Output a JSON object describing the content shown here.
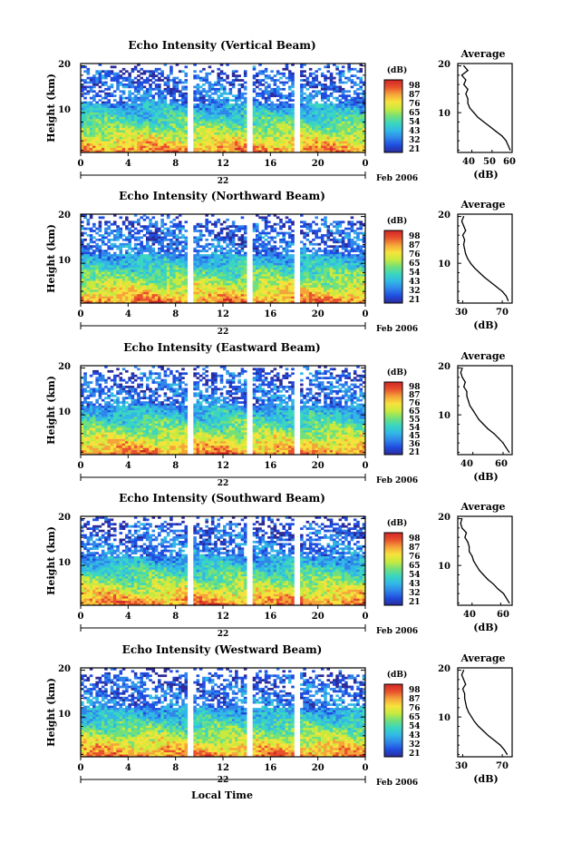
{
  "figure": {
    "x_axis_label": "Local Time",
    "date_label": "Feb 2006",
    "day_label": "22",
    "y_axis_label": "Height (km)",
    "colorbar_unit": "(dB)",
    "average_title": "Average",
    "average_xlabel": "(dB)"
  },
  "chart_data": [
    {
      "type": "heatmap",
      "title": "Echo Intensity (Vertical Beam)",
      "xlabel": "",
      "ylabel": "Height (km)",
      "xlim": [
        0,
        24
      ],
      "ylim": [
        1.5,
        20.5
      ],
      "x_ticks": [
        "0",
        "4",
        "8",
        "12",
        "16",
        "20",
        "0"
      ],
      "y_ticks": [
        "20",
        "10"
      ],
      "colorbar_ticks": [
        "98",
        "87",
        "76",
        "65",
        "54",
        "43",
        "32",
        "21"
      ],
      "data_gaps_hours": [
        [
          8.9,
          9.6
        ],
        [
          13.9,
          14.6
        ],
        [
          18.1,
          18.5
        ]
      ],
      "profile": {
        "title": "Average",
        "xlabel": "(dB)",
        "xlim": [
          33,
          60
        ],
        "x_ticks": [
          "40",
          "50",
          "60"
        ],
        "y_ticks": [
          "20",
          "10"
        ],
        "heights": [
          2,
          3,
          4,
          5,
          6,
          7,
          8,
          9,
          10,
          11,
          12,
          13,
          14,
          15,
          16,
          17,
          18,
          19,
          20
        ],
        "values": [
          59,
          58,
          57,
          55,
          52,
          49,
          46,
          43,
          41,
          39,
          38,
          38,
          37,
          38,
          36,
          37,
          35,
          38,
          36
        ]
      }
    },
    {
      "type": "heatmap",
      "title": "Echo Intensity (Northward Beam)",
      "xlabel": "",
      "ylabel": "Height (km)",
      "xlim": [
        0,
        24
      ],
      "ylim": [
        1.5,
        20.5
      ],
      "x_ticks": [
        "0",
        "4",
        "8",
        "12",
        "16",
        "20",
        "0"
      ],
      "y_ticks": [
        "20",
        "10"
      ],
      "colorbar_ticks": [
        "98",
        "87",
        "76",
        "65",
        "54",
        "43",
        "32",
        "21"
      ],
      "data_gaps_hours": [
        [
          8.9,
          9.6
        ],
        [
          13.9,
          14.6
        ],
        [
          18.1,
          18.5
        ]
      ],
      "profile": {
        "title": "Average",
        "xlabel": "(dB)",
        "xlim": [
          25,
          80
        ],
        "x_ticks": [
          "30",
          "70"
        ],
        "y_ticks": [
          "20",
          "10"
        ],
        "heights": [
          2,
          3,
          4,
          5,
          6,
          7,
          8,
          9,
          10,
          11,
          12,
          13,
          14,
          15,
          16,
          17,
          18,
          19,
          20
        ],
        "values": [
          76,
          74,
          70,
          64,
          58,
          52,
          47,
          42,
          38,
          35,
          33,
          32,
          31,
          32,
          30,
          33,
          31,
          29,
          31
        ]
      }
    },
    {
      "type": "heatmap",
      "title": "Echo Intensity (Eastward Beam)",
      "xlabel": "",
      "ylabel": "Height (km)",
      "xlim": [
        0,
        24
      ],
      "ylim": [
        1.5,
        20.5
      ],
      "x_ticks": [
        "0",
        "4",
        "8",
        "12",
        "16",
        "20",
        "0"
      ],
      "y_ticks": [
        "20",
        "10"
      ],
      "colorbar_ticks": [
        "98",
        "87",
        "76",
        "65",
        "55",
        "54",
        "45",
        "36",
        "21"
      ],
      "data_gaps_hours": [
        [
          8.9,
          9.6
        ],
        [
          13.9,
          14.6
        ],
        [
          18.1,
          18.5
        ]
      ],
      "profile": {
        "title": "Average",
        "xlabel": "(dB)",
        "xlim": [
          30,
          66
        ],
        "x_ticks": [
          "40",
          "60"
        ],
        "y_ticks": [
          "20",
          "10"
        ],
        "heights": [
          2,
          3,
          4,
          5,
          6,
          7,
          8,
          9,
          10,
          11,
          12,
          13,
          14,
          15,
          16,
          17,
          18,
          19,
          20
        ],
        "values": [
          64,
          62,
          60,
          57,
          54,
          50,
          47,
          44,
          42,
          40,
          38,
          37,
          36,
          36,
          34,
          35,
          33,
          32,
          33
        ]
      }
    },
    {
      "type": "heatmap",
      "title": "Echo Intensity (Southward Beam)",
      "xlabel": "",
      "ylabel": "Height (km)",
      "xlim": [
        0,
        24
      ],
      "ylim": [
        1.5,
        20.5
      ],
      "x_ticks": [
        "0",
        "4",
        "8",
        "12",
        "16",
        "20",
        "0"
      ],
      "y_ticks": [
        "20",
        "10"
      ],
      "colorbar_ticks": [
        "98",
        "87",
        "76",
        "65",
        "54",
        "43",
        "32",
        "21"
      ],
      "data_gaps_hours": [
        [
          8.9,
          9.6
        ],
        [
          13.9,
          14.6
        ],
        [
          18.1,
          18.5
        ]
      ],
      "profile": {
        "title": "Average",
        "xlabel": "(dB)",
        "xlim": [
          30,
          68
        ],
        "x_ticks": [
          "40",
          "60"
        ],
        "y_ticks": [
          "20",
          "10"
        ],
        "heights": [
          2,
          3,
          4,
          5,
          6,
          7,
          8,
          9,
          10,
          11,
          12,
          13,
          14,
          15,
          16,
          17,
          18,
          19,
          20
        ],
        "values": [
          66,
          64,
          62,
          58,
          55,
          51,
          48,
          45,
          43,
          41,
          40,
          38,
          38,
          37,
          35,
          36,
          33,
          32,
          33
        ]
      }
    },
    {
      "type": "heatmap",
      "title": "Echo Intensity (Westward Beam)",
      "xlabel": "Local Time",
      "ylabel": "Height (km)",
      "xlim": [
        0,
        24
      ],
      "ylim": [
        1.5,
        20.5
      ],
      "x_ticks": [
        "0",
        "4",
        "8",
        "12",
        "16",
        "20",
        "0"
      ],
      "y_ticks": [
        "20",
        "10"
      ],
      "colorbar_ticks": [
        "98",
        "87",
        "76",
        "65",
        "54",
        "43",
        "32",
        "21"
      ],
      "data_gaps_hours": [
        [
          8.9,
          9.6
        ],
        [
          13.9,
          14.6
        ],
        [
          18.1,
          18.5
        ]
      ],
      "profile": {
        "title": "Average",
        "xlabel": "(dB)",
        "xlim": [
          25,
          80
        ],
        "x_ticks": [
          "30",
          "70"
        ],
        "y_ticks": [
          "20",
          "10"
        ],
        "heights": [
          2,
          3,
          4,
          5,
          6,
          7,
          8,
          9,
          10,
          11,
          12,
          13,
          14,
          15,
          16,
          17,
          18,
          19,
          20
        ],
        "values": [
          75,
          72,
          68,
          62,
          56,
          51,
          46,
          42,
          39,
          36,
          34,
          33,
          32,
          32,
          30,
          33,
          31,
          29,
          31
        ]
      }
    }
  ],
  "colors": {
    "colormap": [
      "#2b2b9a",
      "#1f4de0",
      "#2f86ea",
      "#32b8e6",
      "#3ad6c0",
      "#73e07a",
      "#c8ea3e",
      "#f7e23c",
      "#f5a43a",
      "#e8502c",
      "#d12626"
    ]
  }
}
